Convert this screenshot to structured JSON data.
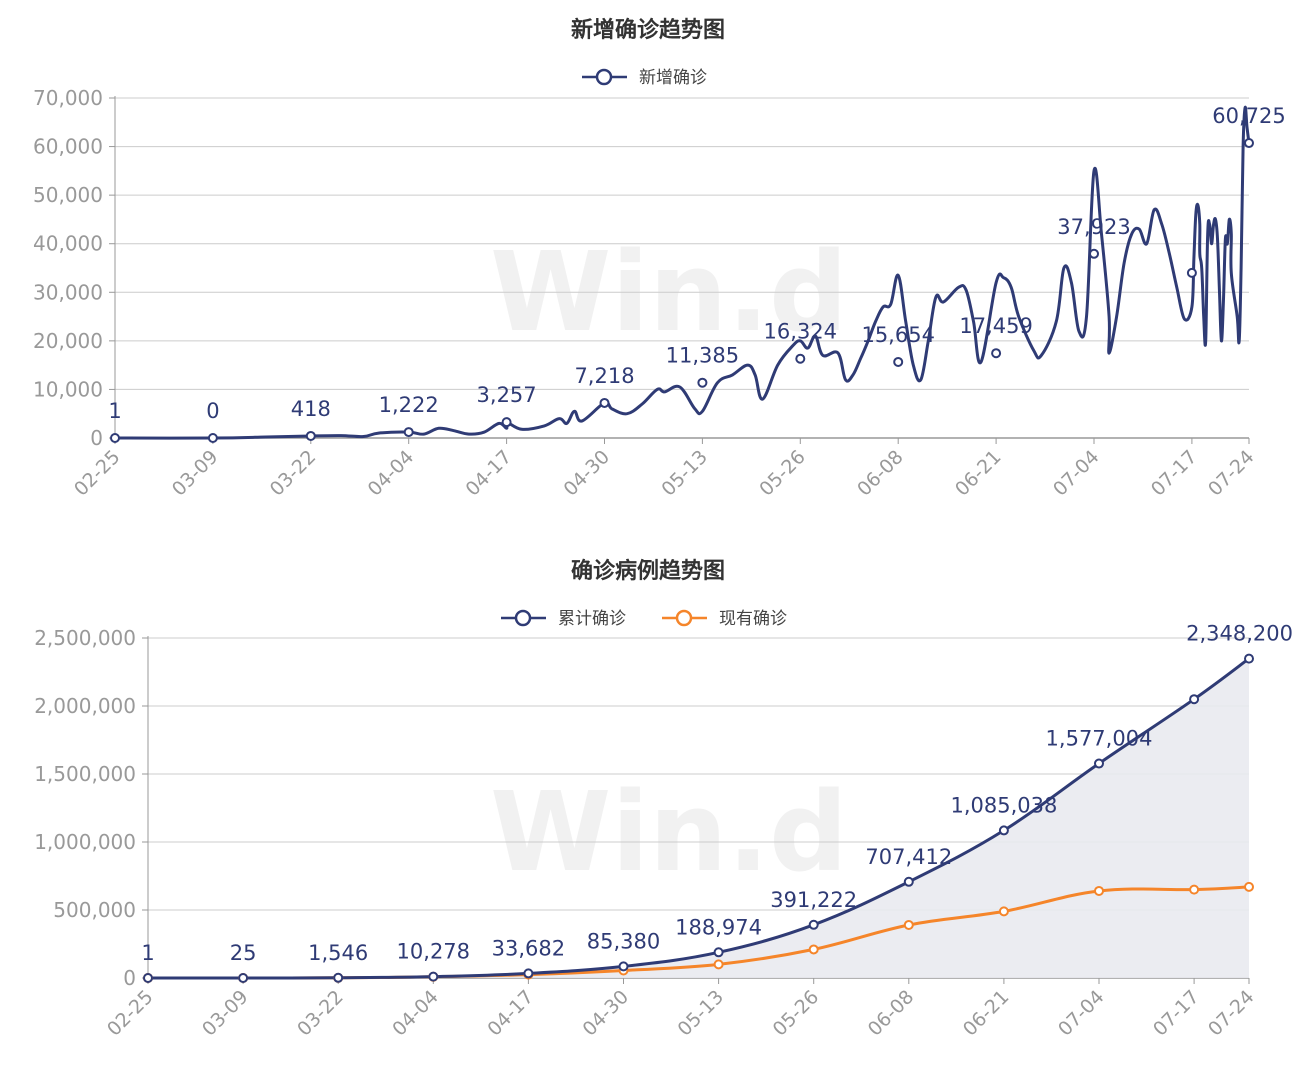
{
  "colors": {
    "navy": "#2f3b75",
    "orange": "#f5852a",
    "grid": "#cccccc",
    "axis": "#999999",
    "area": "#e9eaf0"
  },
  "watermark": "Win.d",
  "chart_data": [
    {
      "type": "line",
      "title": "新增确诊趋势图",
      "legend": [
        "新增确诊"
      ],
      "legend_position": "top-center",
      "xlabel": "",
      "ylabel": "",
      "x_labels": [
        "02-25",
        "03-09",
        "03-22",
        "04-04",
        "04-17",
        "04-30",
        "05-13",
        "05-26",
        "06-08",
        "06-21",
        "07-04",
        "07-17",
        "07-24"
      ],
      "ylim": [
        0,
        70000
      ],
      "yticks": [
        0,
        10000,
        20000,
        30000,
        40000,
        50000,
        60000,
        70000
      ],
      "ytick_labels": [
        "0",
        "10,000",
        "20,000",
        "30,000",
        "40,000",
        "50,000",
        "60,000",
        "70,000"
      ],
      "grid": true,
      "series": [
        {
          "name": "新增确诊",
          "color": "#2f3b75",
          "points": [
            [
              0,
              1
            ],
            [
              13,
              0
            ],
            [
              20,
              200
            ],
            [
              26,
              418
            ],
            [
              30,
              500
            ],
            [
              33,
              300
            ],
            [
              35,
              1000
            ],
            [
              39,
              1222
            ],
            [
              41,
              800
            ],
            [
              43,
              2000
            ],
            [
              45,
              1500
            ],
            [
              47,
              800
            ],
            [
              49,
              1200
            ],
            [
              51,
              3000
            ],
            [
              52,
              2000
            ],
            [
              52,
              3257
            ],
            [
              54,
              1800
            ],
            [
              57,
              2500
            ],
            [
              59,
              4000
            ],
            [
              60,
              3000
            ],
            [
              61,
              5500
            ],
            [
              62,
              3500
            ],
            [
              65,
              7218
            ],
            [
              66,
              6000
            ],
            [
              68,
              5000
            ],
            [
              70,
              7000
            ],
            [
              72,
              10000
            ],
            [
              73,
              9500
            ],
            [
              75,
              10500
            ],
            [
              77,
              6000
            ],
            [
              78,
              5500
            ],
            [
              80,
              11385
            ],
            [
              82,
              13000
            ],
            [
              84,
              15000
            ],
            [
              85,
              13000
            ],
            [
              86,
              8000
            ],
            [
              88,
              15000
            ],
            [
              90,
              19000
            ],
            [
              91,
              20000
            ],
            [
              92,
              18500
            ],
            [
              93,
              21000
            ],
            [
              94,
              17000
            ],
            [
              96,
              17500
            ],
            [
              97,
              12000
            ],
            [
              98,
              13000
            ],
            [
              99,
              16324
            ],
            [
              100,
              20000
            ],
            [
              101,
              24000
            ],
            [
              102,
              27000
            ],
            [
              103,
              27500
            ],
            [
              104,
              33500
            ],
            [
              105,
              24000
            ],
            [
              106,
              15000
            ],
            [
              107,
              12000
            ],
            [
              108,
              20000
            ],
            [
              109,
              29000
            ],
            [
              110,
              28000
            ],
            [
              112,
              31000
            ],
            [
              113,
              30500
            ],
            [
              114,
              24000
            ],
            [
              115,
              15654
            ],
            [
              117,
              32000
            ],
            [
              118,
              33000
            ],
            [
              119,
              31000
            ],
            [
              120,
              25000
            ],
            [
              122,
              18000
            ],
            [
              123,
              17000
            ],
            [
              125,
              24000
            ],
            [
              126,
              35000
            ],
            [
              127,
              32000
            ],
            [
              128,
              22000
            ],
            [
              129,
              25000
            ],
            [
              130,
              55000
            ],
            [
              131,
              42000
            ],
            [
              132,
              25000
            ],
            [
              132,
              17459
            ],
            [
              133,
              25000
            ],
            [
              134,
              36000
            ],
            [
              135,
              42000
            ],
            [
              136,
              43000
            ],
            [
              137,
              40000
            ],
            [
              138,
              47000
            ],
            [
              139,
              44000
            ],
            [
              140,
              38000
            ],
            [
              141,
              31000
            ],
            [
              142,
              24500
            ],
            [
              143,
              27000
            ],
            [
              144,
              37000
            ],
            [
              145,
              46000
            ],
            [
              146,
              48000
            ],
            [
              147,
              44000
            ],
            [
              147,
              37923
            ],
            [
              148,
              35000
            ],
            [
              149,
              25000
            ],
            [
              150,
              20000
            ],
            [
              151,
              42000
            ],
            [
              152,
              44000
            ],
            [
              153,
              40000
            ],
            [
              154,
              44000
            ],
            [
              155,
              45000
            ],
            [
              156,
              41000
            ],
            [
              157,
              30000
            ],
            [
              158,
              20000
            ],
            [
              159,
              28000
            ],
            [
              160,
              41000
            ],
            [
              161,
              40000
            ],
            [
              162,
              45000
            ],
            [
              163,
              42000
            ],
            [
              163,
              34000
            ],
            [
              166,
              25000
            ],
            [
              167,
              20000
            ],
            [
              168,
              35000
            ],
            [
              169,
              60000
            ],
            [
              170,
              68000
            ],
            [
              171,
              64000
            ],
            [
              172,
              60725
            ]
          ],
          "labeled_points": [
            [
              0,
              1
            ],
            [
              13,
              0
            ],
            [
              26,
              418
            ],
            [
              39,
              1222
            ],
            [
              52,
              3257
            ],
            [
              65,
              7218
            ],
            [
              78,
              11385
            ],
            [
              91,
              16324
            ],
            [
              104,
              15654
            ],
            [
              117,
              17459
            ],
            [
              130,
              37923
            ],
            [
              143,
              34000
            ],
            [
              150,
              60725
            ]
          ],
          "data_labels": [
            "1",
            "0",
            "418",
            "1,222",
            "3,257",
            "7,218",
            "11,385",
            "16,324",
            "15,654",
            "17,459",
            "37,923",
            "",
            "60,725"
          ]
        }
      ]
    },
    {
      "type": "line",
      "title": "确诊病例趋势图",
      "legend": [
        "累计确诊",
        "现有确诊"
      ],
      "legend_position": "top-center",
      "xlabel": "",
      "ylabel": "",
      "x_labels": [
        "02-25",
        "03-09",
        "03-22",
        "04-04",
        "04-17",
        "04-30",
        "05-13",
        "05-26",
        "06-08",
        "06-21",
        "07-04",
        "07-17",
        "07-24"
      ],
      "ylim": [
        0,
        2500000
      ],
      "yticks": [
        0,
        500000,
        1000000,
        1500000,
        2000000,
        2500000
      ],
      "ytick_labels": [
        "0",
        "500,000",
        "1,000,000",
        "1,500,000",
        "2,000,000",
        "2,500,000"
      ],
      "grid": true,
      "series": [
        {
          "name": "累计确诊",
          "color": "#2f3b75",
          "area": true,
          "labeled_points": [
            [
              0,
              1
            ],
            [
              13,
              25
            ],
            [
              26,
              1546
            ],
            [
              39,
              10278
            ],
            [
              52,
              33682
            ],
            [
              65,
              85380
            ],
            [
              78,
              188974
            ],
            [
              91,
              391222
            ],
            [
              104,
              707412
            ],
            [
              117,
              1085038
            ],
            [
              130,
              1577004
            ],
            [
              143,
              2050000
            ],
            [
              150,
              2348200
            ]
          ],
          "data_labels": [
            "1",
            "25",
            "1,546",
            "10,278",
            "33,682",
            "85,380",
            "188,974",
            "391,222",
            "707,412",
            "1,085,038",
            "1,577,004",
            "",
            "2,348,200"
          ]
        },
        {
          "name": "现有确诊",
          "color": "#f5852a",
          "labeled_points": [
            [
              0,
              1
            ],
            [
              13,
              20
            ],
            [
              26,
              1300
            ],
            [
              39,
              9000
            ],
            [
              52,
              25000
            ],
            [
              65,
              55000
            ],
            [
              78,
              100000
            ],
            [
              91,
              210000
            ],
            [
              104,
              390000
            ],
            [
              117,
              490000
            ],
            [
              130,
              640000
            ],
            [
              143,
              650000
            ],
            [
              150,
              670000
            ]
          ]
        }
      ]
    }
  ]
}
